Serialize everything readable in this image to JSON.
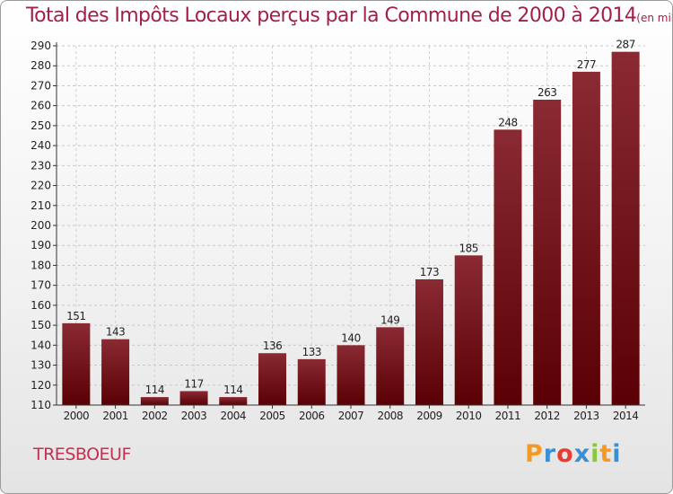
{
  "chart_data": {
    "type": "bar",
    "title": "Total des Impôts Locaux perçus par la Commune de 2000 à 2014",
    "unit": "(en milliers d'€)",
    "categories": [
      "2000",
      "2001",
      "2002",
      "2003",
      "2004",
      "2005",
      "2006",
      "2007",
      "2008",
      "2009",
      "2010",
      "2011",
      "2012",
      "2013",
      "2014"
    ],
    "values": [
      151,
      143,
      114,
      117,
      114,
      136,
      133,
      140,
      149,
      173,
      185,
      248,
      263,
      277,
      287
    ],
    "ylim": [
      110,
      290
    ],
    "yticks": [
      110,
      120,
      130,
      140,
      150,
      160,
      170,
      180,
      190,
      200,
      210,
      220,
      230,
      240,
      250,
      260,
      270,
      280,
      290
    ],
    "grid": true,
    "xlabel": "",
    "ylabel": "",
    "bar_color": "#7a1a1e"
  },
  "commune": "TRESBOEUF",
  "logo": {
    "letters": [
      "P",
      "r",
      "o",
      "x",
      "i",
      "t",
      "i"
    ],
    "colors": [
      "#f29a24",
      "#3a8fd4",
      "#e53d2f",
      "#3a8fd4",
      "#8cc63f",
      "#f29a24",
      "#3a8fd4"
    ]
  }
}
